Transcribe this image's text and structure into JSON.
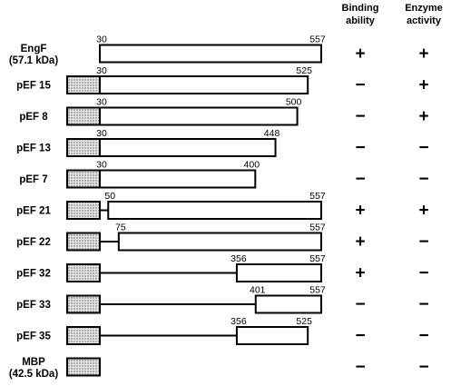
{
  "headers": {
    "binding": [
      "Binding",
      "ability"
    ],
    "enzyme": [
      "Enzyme",
      "activity"
    ]
  },
  "colors": {
    "stroke": "#000000",
    "fill": "#ffffff",
    "tag_fill": "#c8c8c8"
  },
  "scale": {
    "start": 30,
    "end": 557
  },
  "constructs": [
    {
      "name": [
        "EngF",
        "(57.1 kDa)"
      ],
      "tag": false,
      "start": 30,
      "end": 557,
      "start_label": "30",
      "end_label": "557",
      "binding": "+",
      "enzyme": "+"
    },
    {
      "name": [
        "pEF 15"
      ],
      "tag": true,
      "start": 30,
      "end": 525,
      "start_label": "30",
      "end_label": "525",
      "binding": "−",
      "enzyme": "+"
    },
    {
      "name": [
        "pEF 8"
      ],
      "tag": true,
      "start": 30,
      "end": 500,
      "start_label": "30",
      "end_label": "500",
      "binding": "−",
      "enzyme": "+"
    },
    {
      "name": [
        "pEF 13"
      ],
      "tag": true,
      "start": 30,
      "end": 448,
      "start_label": "30",
      "end_label": "448",
      "binding": "−",
      "enzyme": "−"
    },
    {
      "name": [
        "pEF 7"
      ],
      "tag": true,
      "start": 30,
      "end": 400,
      "start_label": "30",
      "end_label": "400",
      "binding": "−",
      "enzyme": "−"
    },
    {
      "name": [
        "pEF 21"
      ],
      "tag": true,
      "start": 50,
      "end": 557,
      "start_label": "50",
      "end_label": "557",
      "binding": "+",
      "enzyme": "+"
    },
    {
      "name": [
        "pEF 22"
      ],
      "tag": true,
      "start": 75,
      "end": 557,
      "start_label": "75",
      "end_label": "557",
      "binding": "+",
      "enzyme": "−"
    },
    {
      "name": [
        "pEF 32"
      ],
      "tag": true,
      "start": 356,
      "end": 557,
      "start_label": "356",
      "end_label": "557",
      "binding": "+",
      "enzyme": "−"
    },
    {
      "name": [
        "pEF 33"
      ],
      "tag": true,
      "start": 401,
      "end": 557,
      "start_label": "401",
      "end_label": "557",
      "binding": "−",
      "enzyme": "−"
    },
    {
      "name": [
        "pEF 35"
      ],
      "tag": true,
      "start": 356,
      "end": 525,
      "start_label": "356",
      "end_label": "525",
      "binding": "−",
      "enzyme": "−"
    },
    {
      "name": [
        "MBP",
        "(42.5 kDa)"
      ],
      "tag": true,
      "start": null,
      "end": null,
      "start_label": "",
      "end_label": "",
      "binding": "−",
      "enzyme": "−"
    }
  ]
}
